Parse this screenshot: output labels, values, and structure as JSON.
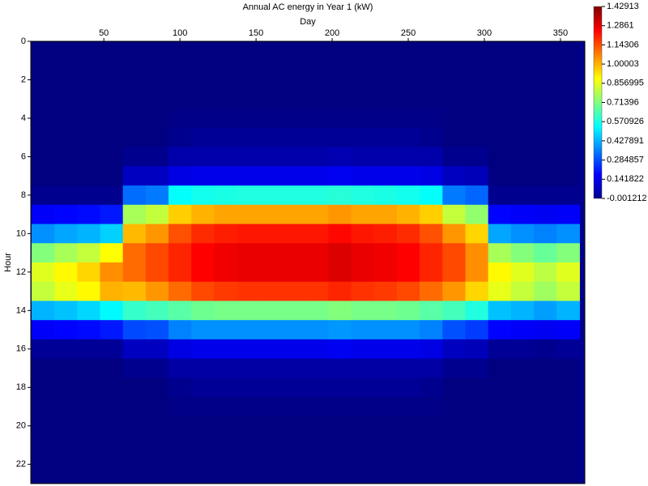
{
  "chart_data": {
    "type": "heatmap",
    "title": "Annual AC energy in Year 1 (kW)",
    "x_label": "Day",
    "y_label": "Hour",
    "x": [
      10,
      25,
      40,
      55,
      70,
      85,
      100,
      115,
      130,
      145,
      160,
      175,
      190,
      205,
      220,
      235,
      250,
      265,
      280,
      295,
      310,
      325,
      340,
      355
    ],
    "y": [
      0,
      1,
      2,
      3,
      4,
      5,
      6,
      7,
      8,
      9,
      10,
      11,
      12,
      13,
      14,
      15,
      16,
      17,
      18,
      19,
      20,
      21,
      22,
      23
    ],
    "z": [
      [
        0,
        0,
        0,
        0,
        0,
        0,
        0,
        0,
        0.02,
        0.17,
        0.38,
        0.72,
        0.85,
        0.81,
        0.43,
        0.17,
        0.03,
        0,
        0,
        0,
        0,
        0,
        0,
        0
      ],
      [
        0,
        0,
        0,
        0,
        0,
        0,
        0,
        0,
        0.02,
        0.18,
        0.41,
        0.77,
        0.9,
        0.86,
        0.45,
        0.18,
        0.03,
        0,
        0,
        0,
        0,
        0,
        0,
        0
      ],
      [
        0,
        0,
        0,
        0,
        0,
        0,
        0,
        0,
        0.02,
        0.19,
        0.43,
        0.81,
        0.95,
        0.9,
        0.48,
        0.19,
        0.03,
        0,
        0,
        0,
        0,
        0,
        0,
        0
      ],
      [
        0,
        0,
        0,
        0,
        0,
        0,
        0,
        0,
        0.02,
        0.21,
        0.47,
        0.89,
        1.05,
        1.0,
        0.53,
        0.21,
        0.03,
        0,
        0,
        0,
        0,
        0,
        0,
        0
      ],
      [
        0,
        0,
        0,
        0,
        0,
        0,
        0.02,
        0.09,
        0.33,
        0.77,
        0.99,
        1.1,
        1.1,
        0.99,
        0.61,
        0.28,
        0.09,
        0.02,
        0,
        0,
        0,
        0,
        0,
        0
      ],
      [
        0,
        0,
        0,
        0,
        0,
        0,
        0.02,
        0.09,
        0.35,
        0.81,
        1.04,
        1.15,
        1.15,
        1.04,
        0.63,
        0.29,
        0.09,
        0.02,
        0,
        0,
        0,
        0,
        0,
        0
      ],
      [
        0,
        0,
        0,
        0,
        0.01,
        0.02,
        0.06,
        0.14,
        0.54,
        0.96,
        1.14,
        1.2,
        1.2,
        1.1,
        0.66,
        0.36,
        0.14,
        0.05,
        0.02,
        0.01,
        0,
        0,
        0,
        0
      ],
      [
        0,
        0,
        0,
        0,
        0.01,
        0.03,
        0.06,
        0.15,
        0.56,
        1.0,
        1.19,
        1.25,
        1.25,
        1.15,
        0.69,
        0.38,
        0.15,
        0.05,
        0.03,
        0.01,
        0,
        0,
        0,
        0
      ],
      [
        0,
        0,
        0,
        0,
        0.01,
        0.03,
        0.06,
        0.15,
        0.57,
        1.02,
        1.21,
        1.27,
        1.27,
        1.17,
        0.7,
        0.38,
        0.15,
        0.05,
        0.03,
        0.01,
        0,
        0,
        0,
        0
      ],
      [
        0,
        0,
        0,
        0,
        0.01,
        0.03,
        0.06,
        0.15,
        0.58,
        1.02,
        1.22,
        1.28,
        1.28,
        1.18,
        0.7,
        0.38,
        0.15,
        0.05,
        0.03,
        0.01,
        0,
        0,
        0,
        0
      ],
      [
        0,
        0,
        0,
        0,
        0.01,
        0.03,
        0.06,
        0.15,
        0.58,
        1.02,
        1.22,
        1.28,
        1.28,
        1.18,
        0.7,
        0.38,
        0.15,
        0.05,
        0.03,
        0.01,
        0,
        0,
        0,
        0
      ],
      [
        0,
        0,
        0,
        0,
        0.01,
        0.03,
        0.06,
        0.15,
        0.58,
        1.02,
        1.22,
        1.28,
        1.28,
        1.18,
        0.7,
        0.38,
        0.15,
        0.05,
        0.03,
        0.01,
        0,
        0,
        0,
        0
      ],
      [
        0,
        0,
        0,
        0,
        0.01,
        0.03,
        0.06,
        0.15,
        0.58,
        1.02,
        1.22,
        1.28,
        1.28,
        1.18,
        0.7,
        0.38,
        0.15,
        0.05,
        0.03,
        0.01,
        0,
        0,
        0,
        0
      ],
      [
        0,
        0,
        0,
        0,
        0.01,
        0.03,
        0.07,
        0.16,
        0.59,
        1.04,
        1.24,
        1.3,
        1.3,
        1.2,
        0.72,
        0.39,
        0.16,
        0.05,
        0.03,
        0.01,
        0,
        0,
        0,
        0
      ],
      [
        0,
        0,
        0,
        0,
        0.01,
        0.03,
        0.06,
        0.15,
        0.58,
        1.02,
        1.22,
        1.28,
        1.28,
        1.18,
        0.7,
        0.38,
        0.15,
        0.05,
        0.03,
        0.01,
        0,
        0,
        0,
        0
      ],
      [
        0,
        0,
        0,
        0,
        0.01,
        0.03,
        0.06,
        0.15,
        0.57,
        1.02,
        1.21,
        1.27,
        1.27,
        1.17,
        0.7,
        0.38,
        0.15,
        0.05,
        0.03,
        0.01,
        0,
        0,
        0,
        0
      ],
      [
        0,
        0,
        0,
        0,
        0.01,
        0.03,
        0.06,
        0.15,
        0.56,
        1.0,
        1.19,
        1.25,
        1.25,
        1.15,
        0.69,
        0.38,
        0.15,
        0.05,
        0.03,
        0.01,
        0,
        0,
        0,
        0
      ],
      [
        0,
        0,
        0,
        0,
        0.01,
        0.02,
        0.06,
        0.14,
        0.54,
        0.96,
        1.14,
        1.2,
        1.2,
        1.1,
        0.66,
        0.36,
        0.14,
        0.05,
        0.02,
        0.01,
        0,
        0,
        0,
        0
      ],
      [
        0,
        0,
        0,
        0,
        0,
        0,
        0.02,
        0.09,
        0.35,
        0.81,
        1.04,
        1.15,
        1.15,
        1.04,
        0.63,
        0.29,
        0.09,
        0.02,
        0,
        0,
        0,
        0,
        0,
        0
      ],
      [
        0,
        0,
        0,
        0,
        0,
        0,
        0.02,
        0.08,
        0.32,
        0.74,
        0.95,
        1.05,
        1.05,
        0.95,
        0.58,
        0.26,
        0.08,
        0.02,
        0,
        0,
        0,
        0,
        0,
        0
      ],
      [
        0,
        0,
        0,
        0,
        0,
        0,
        0,
        0,
        0.02,
        0.18,
        0.41,
        0.77,
        0.9,
        0.86,
        0.45,
        0.18,
        0.03,
        0,
        0,
        0,
        0,
        0,
        0,
        0
      ],
      [
        0,
        0,
        0,
        0,
        0,
        0,
        0,
        0,
        0.02,
        0.17,
        0.38,
        0.72,
        0.85,
        0.81,
        0.43,
        0.17,
        0.03,
        0,
        0,
        0,
        0,
        0,
        0,
        0
      ],
      [
        0,
        0,
        0,
        0,
        0,
        0,
        0,
        0,
        0.02,
        0.16,
        0.36,
        0.68,
        0.8,
        0.76,
        0.4,
        0.16,
        0.02,
        0,
        0,
        0,
        0,
        0,
        0,
        0
      ],
      [
        0,
        0,
        0,
        0,
        0,
        0,
        0,
        0,
        0.02,
        0.17,
        0.38,
        0.72,
        0.85,
        0.81,
        0.43,
        0.17,
        0.03,
        0,
        0,
        0,
        0,
        0,
        0,
        0
      ]
    ],
    "xlim": [
      2,
      366
    ],
    "xticks": [
      50,
      100,
      150,
      200,
      250,
      300,
      350
    ],
    "ylim": [
      0,
      23
    ],
    "yticks": [
      0,
      2,
      4,
      6,
      8,
      10,
      12,
      14,
      16,
      18,
      20,
      22
    ],
    "y_inverted": true,
    "colormap": "jet",
    "zlim": [
      -0.001212,
      1.42913
    ],
    "zticks": [
      1.42913,
      1.2861,
      1.14306,
      1.00003,
      0.856995,
      0.71396,
      0.570926,
      0.427891,
      0.284857,
      0.141822,
      -0.001212
    ]
  }
}
